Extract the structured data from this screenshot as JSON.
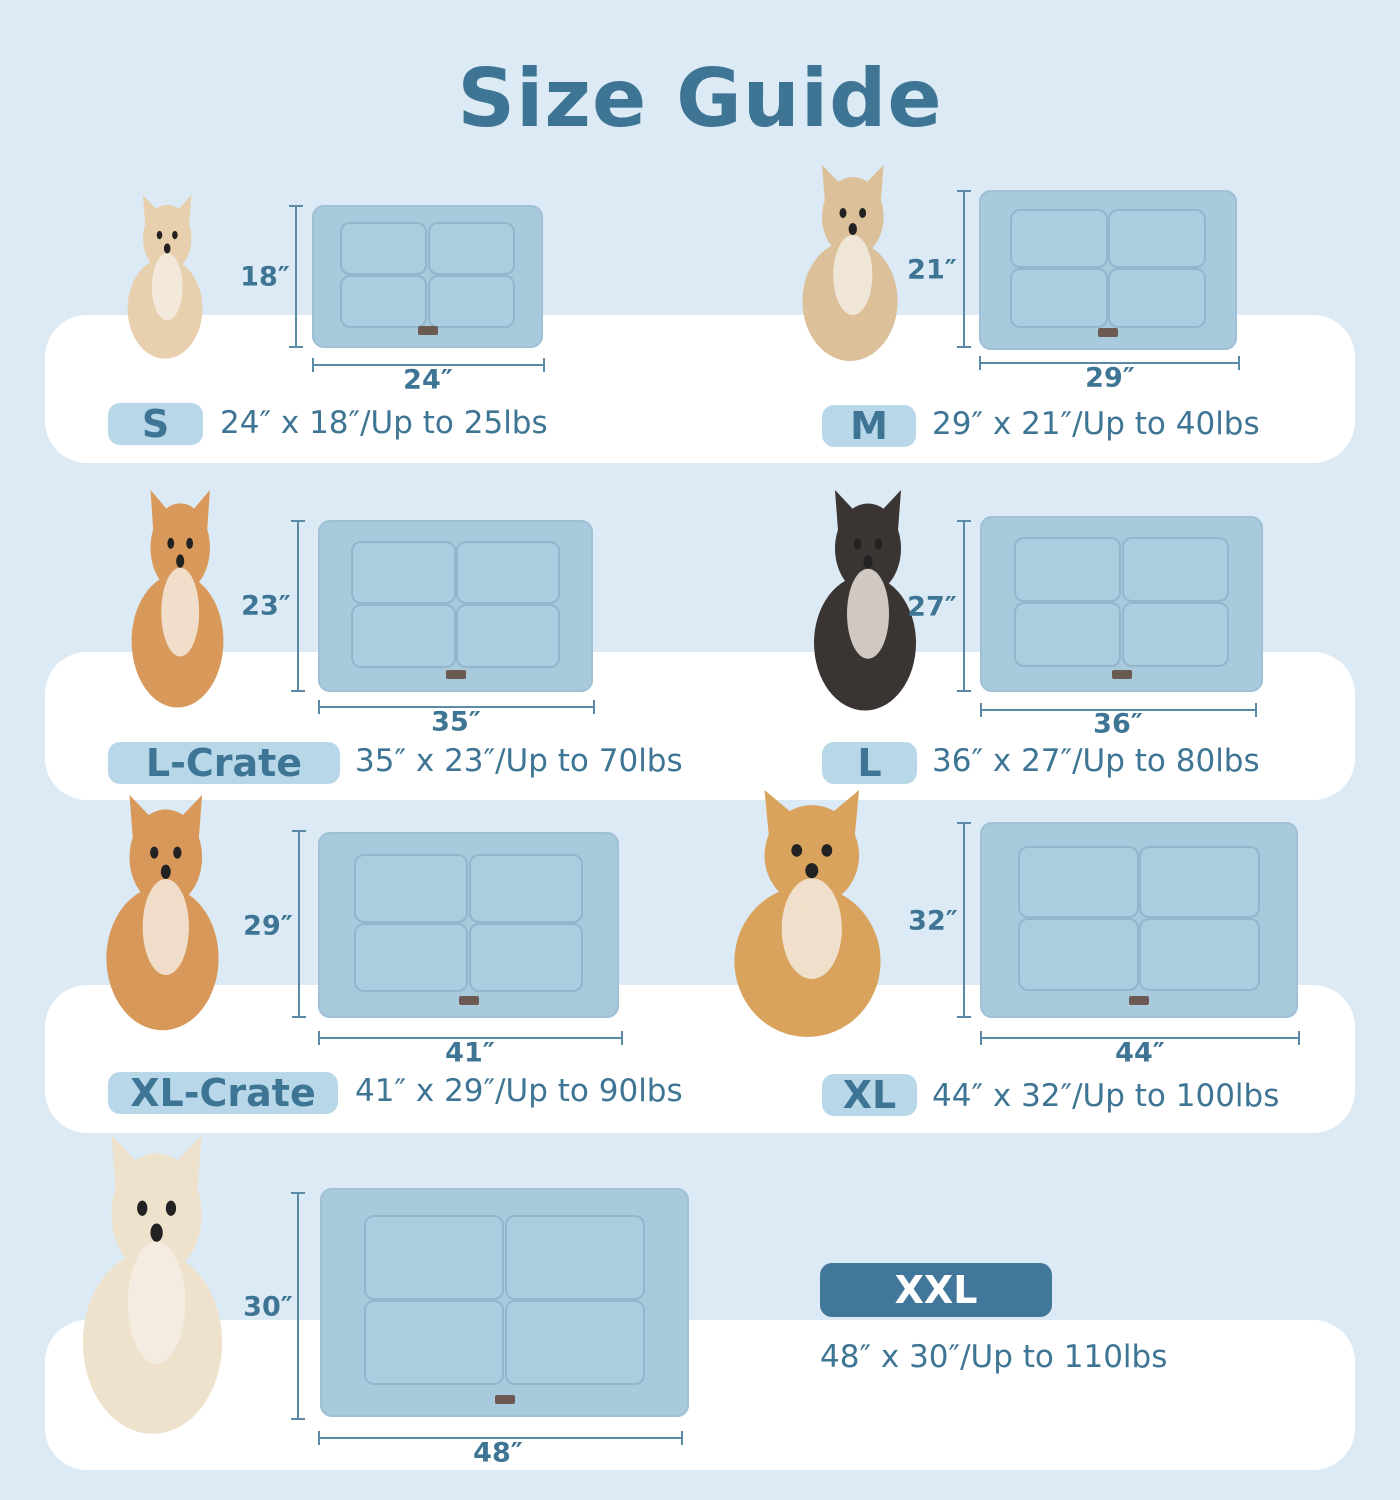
{
  "title": "Size Guide",
  "colors": {
    "background": "#dbeaf4",
    "text": "#3f7594",
    "badge": "#b8d8ea",
    "badge_featured": "#41779a",
    "mat": "#a9c9dd",
    "panel": "#ffffff"
  },
  "sizes": [
    {
      "label": "S",
      "width": "24″",
      "height": "18″",
      "spec": "24″ x 18″/Up to 25lbs",
      "dog": "chihuahua"
    },
    {
      "label": "M",
      "width": "29″",
      "height": "21″",
      "spec": "29″ x 21″/Up to 40lbs",
      "dog": "fluffy-puppy"
    },
    {
      "label": "L-Crate",
      "width": "35″",
      "height": "23″",
      "spec": "35″ x 23″/Up to 70lbs",
      "dog": "corgi"
    },
    {
      "label": "L",
      "width": "36″",
      "height": "27″",
      "spec": "36″ x 27″/Up to 80lbs",
      "dog": "border-collie"
    },
    {
      "label": "XL-Crate",
      "width": "41″",
      "height": "29″",
      "spec": "41″ x 29″/Up to 90lbs",
      "dog": "shiba-inu"
    },
    {
      "label": "XL",
      "width": "44″",
      "height": "32″",
      "spec": "44″ x 32″/Up to 100lbs",
      "dog": "golden-retriever"
    },
    {
      "label": "XXL",
      "width": "48″",
      "height": "30″",
      "spec": "48″ x 30″/Up to 110lbs",
      "dog": "white-golden-retriever",
      "featured": true
    }
  ]
}
